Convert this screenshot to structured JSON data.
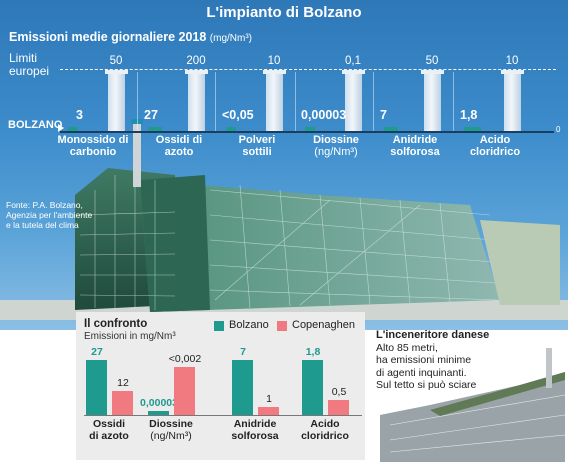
{
  "header": {
    "title": "L'impianto di Bolzano",
    "subtitle_bold": "Emissioni medie giornaliere 2018",
    "subtitle_unit": "(mg/Nm³)",
    "limits_label": "Limiti europei",
    "bolzano_label": "BOLZANO",
    "axis_zero": "0",
    "source": "Fonte: P.A. Bolzano, Agenzia per l'ambiente e la tutela del clima"
  },
  "colors": {
    "bolzano": "#1e9a8e",
    "copenhagen": "#f07a80",
    "sky": "#3d8ccb"
  },
  "chart_data": [
    {
      "type": "bar",
      "title": "Emissioni medie giornaliere 2018",
      "unit": "mg/Nm³",
      "categories": [
        "Monossido di carbonio",
        "Ossidi di azoto",
        "Polveri sottili",
        "Diossine",
        "Anidride solforosa",
        "Acido cloridrico"
      ],
      "category_units": [
        "",
        "",
        "",
        "(ng/Nm³)",
        "",
        ""
      ],
      "series": [
        {
          "name": "BOLZANO",
          "values": [
            3,
            27,
            0.05,
            3e-05,
            7,
            1.8
          ],
          "labels": [
            "3",
            "27",
            "<0,05",
            "0,00003",
            "7",
            "1,8"
          ]
        },
        {
          "name": "Limiti europei",
          "values": [
            50,
            200,
            10,
            0.1,
            50,
            10
          ],
          "labels": [
            "50",
            "200",
            "10",
            "0,1",
            "50",
            "10"
          ]
        }
      ]
    },
    {
      "type": "bar",
      "title": "Il confronto",
      "subtitle": "Emissioni in mg/Nm³",
      "categories": [
        "Ossidi di azoto",
        "Diossine",
        "Anidride solforosa",
        "Acido cloridrico"
      ],
      "category_units": [
        "",
        "(ng/Nm³)",
        "",
        ""
      ],
      "series": [
        {
          "name": "Bolzano",
          "values": [
            27,
            3e-05,
            7,
            1.8
          ],
          "labels": [
            "27",
            "0,00003",
            "7",
            "1,8"
          ]
        },
        {
          "name": "Copenaghen",
          "values": [
            12,
            0.002,
            1,
            0.5
          ],
          "labels": [
            "12",
            "<0,002",
            "1",
            "0,5"
          ]
        }
      ]
    }
  ],
  "denmark": {
    "title": "L'inceneritore danese",
    "lines": [
      "Alto 85 metri,",
      "ha emissioni minime",
      "di agenti inquinanti.",
      "Sul tetto si può sciare"
    ]
  }
}
